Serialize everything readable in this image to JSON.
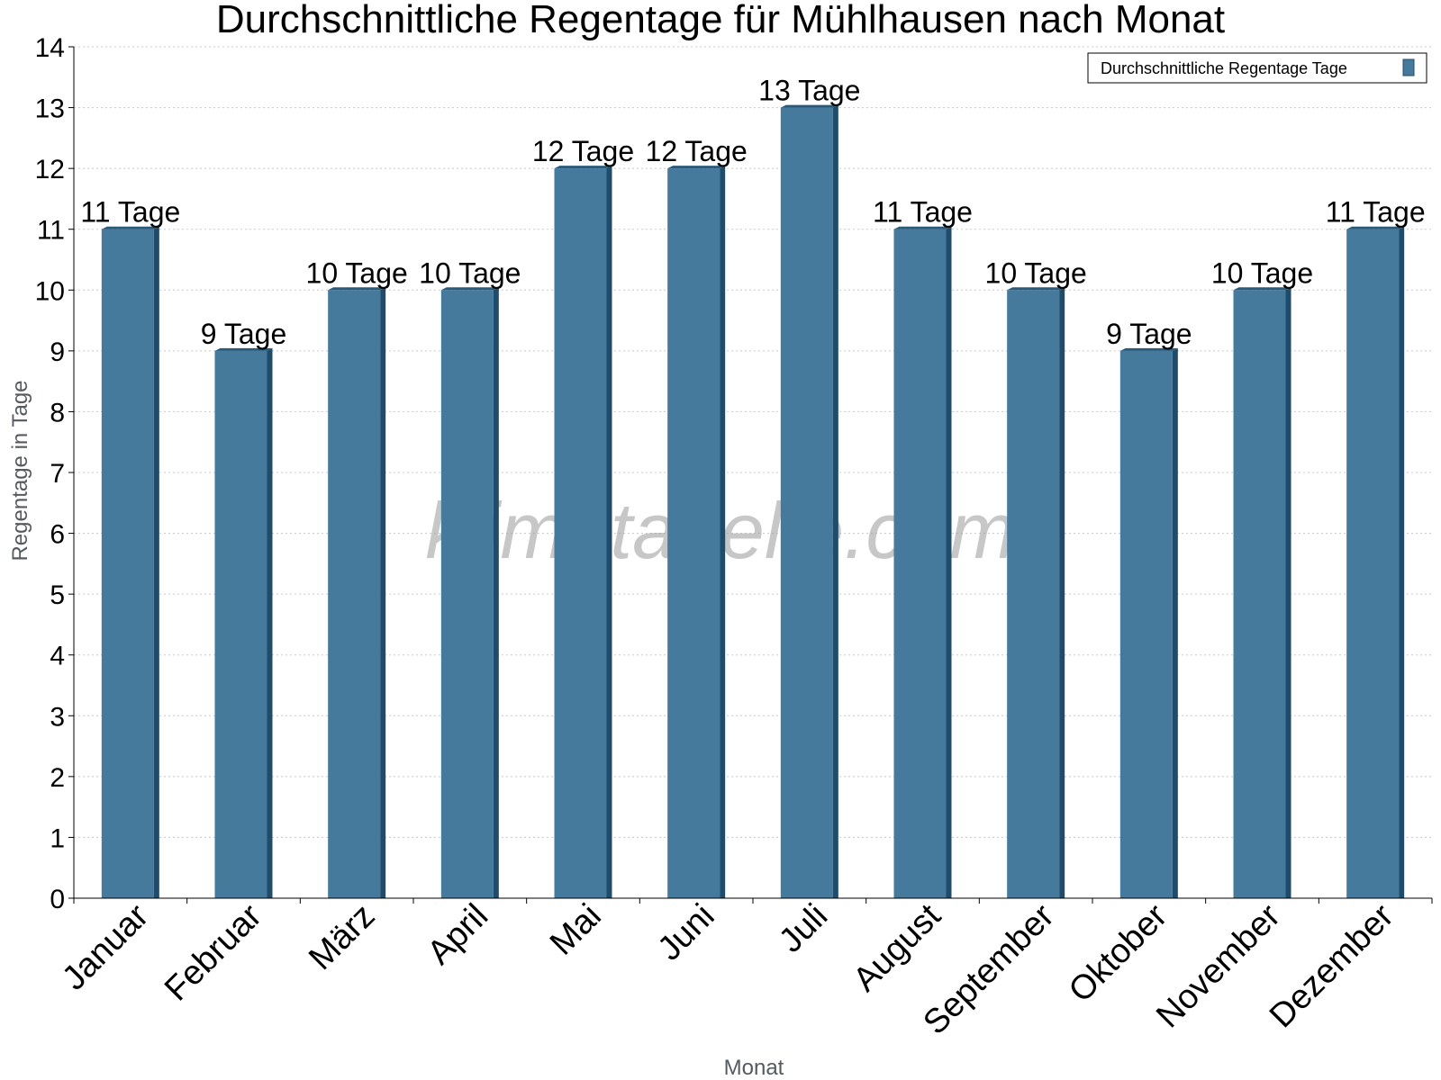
{
  "chart_data": {
    "type": "bar",
    "title": "Durchschnittliche Regentage für Mühlhausen nach Monat",
    "xlabel": "Monat",
    "ylabel": "Regentage in Tage",
    "ylim": [
      0,
      14
    ],
    "yticks": [
      "0",
      "1",
      "2",
      "3",
      "4",
      "5",
      "6",
      "7",
      "8",
      "9",
      "10",
      "11",
      "12",
      "13",
      "14"
    ],
    "grid": true,
    "legend_position": "top-right",
    "categories": [
      "Januar",
      "Februar",
      "März",
      "April",
      "Mai",
      "Juni",
      "Juli",
      "August",
      "September",
      "Oktober",
      "November",
      "Dezember"
    ],
    "series": [
      {
        "name": "Durchschnittliche Regentage Tage",
        "values": [
          11,
          9,
          10,
          10,
          12,
          12,
          13,
          11,
          10,
          9,
          10,
          11
        ],
        "labels": [
          "11 Tage",
          "9 Tage",
          "10 Tage",
          "10 Tage",
          "12 Tage",
          "12 Tage",
          "13 Tage",
          "11 Tage",
          "10 Tage",
          "9 Tage",
          "10 Tage",
          "11 Tage"
        ]
      }
    ],
    "colors": {
      "bar": "#457a9c",
      "bar_side": "#1f4c6b",
      "bar_top": "#2a5a7a"
    }
  },
  "watermark": "klimatabelle.com"
}
